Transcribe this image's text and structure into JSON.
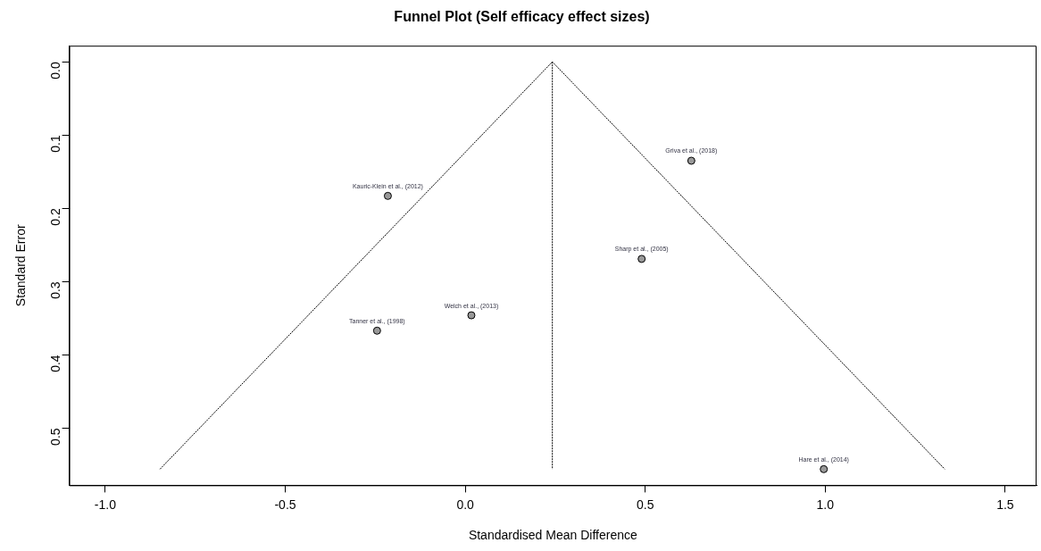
{
  "chart_data": {
    "type": "scatter",
    "title": "Funnel Plot (Self efficacy effect sizes)",
    "xlabel": "Standardised Mean Difference",
    "ylabel": "Standard Error",
    "xlim": [
      -1.1,
      1.587
    ],
    "xticks": [
      {
        "value": -1,
        "label": "-1.0"
      },
      {
        "value": -0.5,
        "label": "-0.5"
      },
      {
        "value": 0,
        "label": "0.0"
      },
      {
        "value": 0.5,
        "label": "0.5"
      },
      {
        "value": 1,
        "label": "1.0"
      },
      {
        "value": 1.5,
        "label": "1.5"
      }
    ],
    "ylim": [
      0.578,
      -0.022
    ],
    "yticks": [
      {
        "value": 0,
        "label": "0.0"
      },
      {
        "value": 0.1,
        "label": "0.1"
      },
      {
        "value": 0.2,
        "label": "0.2"
      },
      {
        "value": 0.3,
        "label": "0.3"
      },
      {
        "value": 0.4,
        "label": "0.4"
      },
      {
        "value": 0.5,
        "label": "0.5"
      }
    ],
    "marker": "circle",
    "series": [
      {
        "color": "#999999",
        "x": [
          -0.215,
          -0.245,
          0.017,
          0.628,
          0.49,
          0.996
        ],
        "values": [
          0.183,
          0.367,
          0.346,
          0.135,
          0.269,
          0.556
        ]
      },
      {
        "type": "line",
        "color": "#000000",
        "line_style": "dotted",
        "marker": "none",
        "x": [
          -0.848,
          0.242,
          1.332
        ],
        "values": [
          0.556,
          0,
          0.556
        ]
      },
      {
        "type": "line",
        "color": "#000000",
        "line_style": "dotted",
        "marker": "none",
        "x": [
          0.242,
          0.242
        ],
        "values": [
          0,
          0.556
        ]
      }
    ],
    "annotations": [
      {
        "text": "Kauric-Klein et al., (2012)",
        "x": -0.215,
        "y": 0.183
      },
      {
        "text": "Tanner et al., (1998)",
        "x": -0.245,
        "y": 0.367
      },
      {
        "text": "Welch et al., (2013)",
        "x": 0.017,
        "y": 0.346
      },
      {
        "text": "Griva et al., (2018)",
        "x": 0.628,
        "y": 0.135
      },
      {
        "text": "Sharp et al., (2005)",
        "x": 0.49,
        "y": 0.269
      },
      {
        "text": "Hare et al., (2014)",
        "x": 0.996,
        "y": 0.556
      }
    ]
  }
}
